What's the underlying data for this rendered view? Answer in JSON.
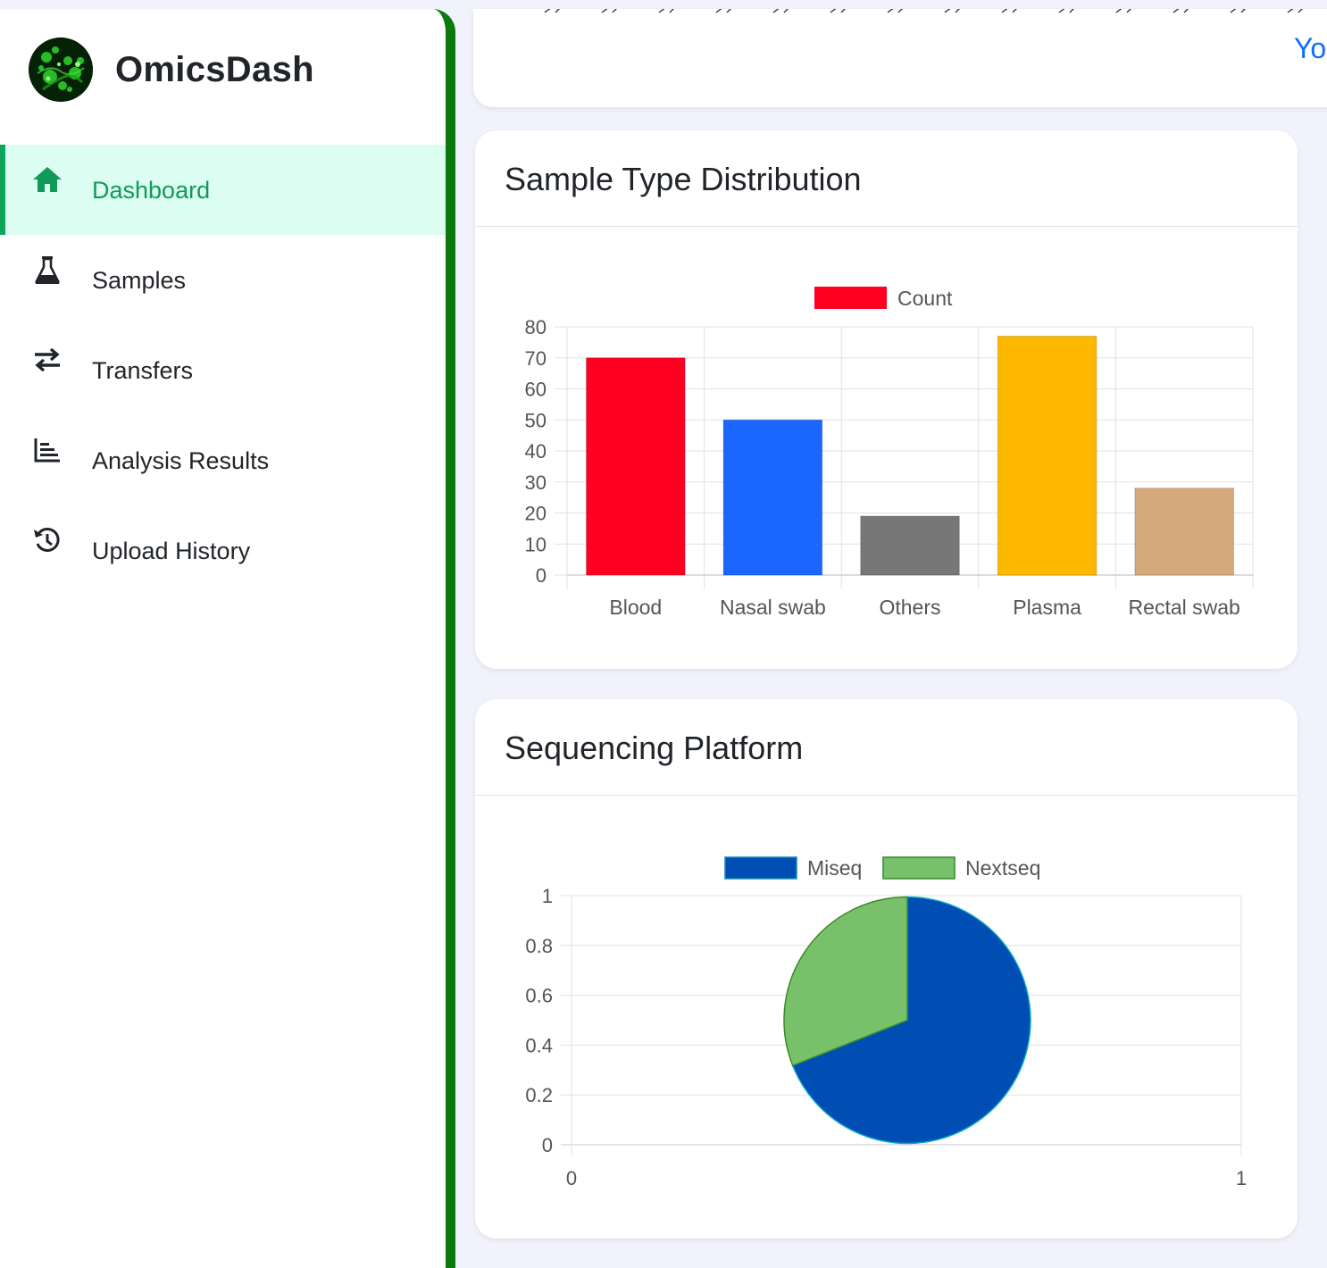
{
  "brand": {
    "name": "OmicsDash"
  },
  "nav": {
    "items": [
      {
        "label": "Dashboard",
        "icon": "home-icon",
        "active": true
      },
      {
        "label": "Samples",
        "icon": "flask-icon"
      },
      {
        "label": "Transfers",
        "icon": "transfer-arrows-icon"
      },
      {
        "label": "Analysis Results",
        "icon": "bar-chart-icon"
      },
      {
        "label": "Upload History",
        "icon": "history-icon"
      }
    ]
  },
  "top_card": {
    "link_text": "Yo"
  },
  "colors": {
    "accent": "#0f9b57",
    "sidebar_border": "#0a7a0a",
    "active_bg": "#dcfdf1"
  },
  "charts": {
    "sample_type": {
      "title": "Sample Type Distribution"
    },
    "platform": {
      "title": "Sequencing Platform"
    }
  },
  "chart_data": [
    {
      "type": "bar",
      "title": "Sample Type Distribution",
      "categories": [
        "Blood",
        "Nasal swab",
        "Others",
        "Plasma",
        "Rectal swab"
      ],
      "series": [
        {
          "name": "Count",
          "values": [
            70,
            50,
            19,
            77,
            28
          ]
        }
      ],
      "colors": [
        "#ff0022",
        "#1a66ff",
        "#777777",
        "#ffb800",
        "#d4aa7c"
      ],
      "ylim": [
        0,
        80
      ],
      "yticks": [
        0,
        10,
        20,
        30,
        40,
        50,
        60,
        70,
        80
      ],
      "legend": "top",
      "grid": true
    },
    {
      "type": "pie",
      "title": "Sequencing Platform",
      "labels": [
        "Miseq",
        "Nextseq"
      ],
      "values": [
        69,
        31
      ],
      "colors": [
        "#004db3",
        "#78c06a"
      ],
      "xlim": [
        0,
        1
      ],
      "ylim": [
        0,
        1
      ],
      "xticks": [
        "0",
        "1"
      ],
      "yticks": [
        "0",
        "0.2",
        "0.4",
        "0.6",
        "0.8",
        "1"
      ],
      "legend": "top",
      "grid": true
    }
  ]
}
